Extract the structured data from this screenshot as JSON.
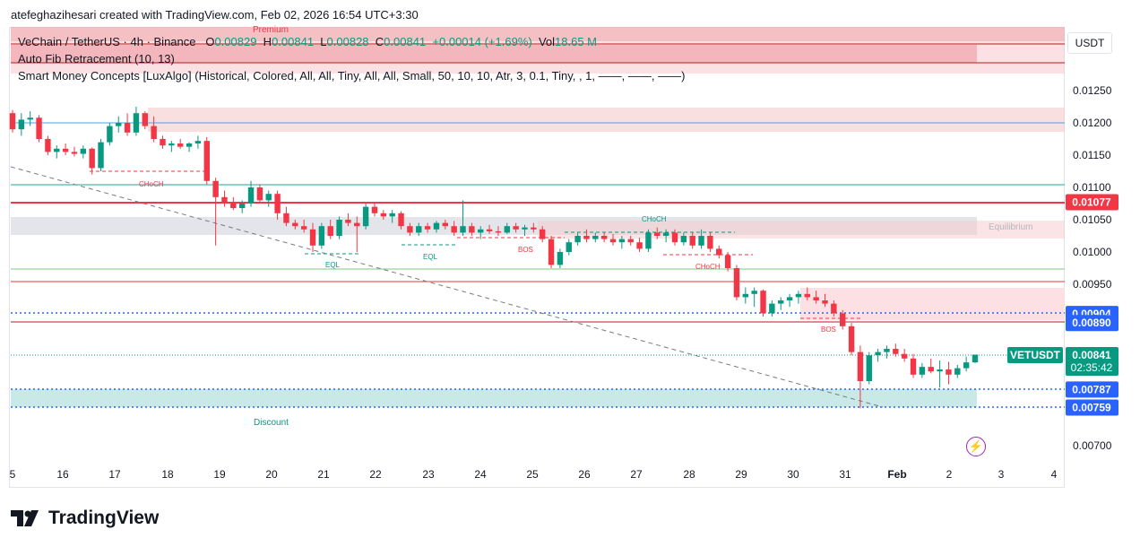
{
  "header": {
    "credit": "atefeghazihesari created with TradingView.com, Feb 02, 2026 16:54 UTC+3:30"
  },
  "legend": {
    "symbol": "VeChain / TetherUS · 4h · Binance",
    "ohlc": {
      "O": "0.00829",
      "H": "0.00841",
      "L": "0.00828",
      "C": "0.00841",
      "change": "+0.00014 (+1.69%)",
      "vol": "18.65 M"
    },
    "fib": "Auto Fib Retracement (10, 13)",
    "smc": "Smart Money Concepts [LuxAlgo] (Historical, Colored, All, All, Tiny, All, All, Small, 50, 10, 10, Atr, 3, 0.1, Tiny, , 1, ——, ——, ——)"
  },
  "toolbar": {
    "currency": "USDT"
  },
  "colors": {
    "up": "#089981",
    "down": "#f23645",
    "premium_zone": "#f7c9cc",
    "discount_zone": "#b2dfdb",
    "equilibrium_zone": "#d1d4dc"
  },
  "chart_data": {
    "type": "candlestick",
    "symbol": "VETUSDT",
    "interval": "4h",
    "x_ticks": [
      "5",
      "16",
      "17",
      "18",
      "19",
      "20",
      "21",
      "22",
      "23",
      "24",
      "25",
      "26",
      "27",
      "28",
      "29",
      "30",
      "31",
      "Feb",
      "2",
      "3",
      "4"
    ],
    "y_ticks": [
      "0.01250",
      "0.01200",
      "0.01150",
      "0.01100",
      "0.01050",
      "0.01000",
      "0.00950",
      "0.00700"
    ],
    "ylim": [
      0.0066,
      0.0131
    ],
    "price_tags": [
      {
        "label": "0.01077",
        "value": 0.01077,
        "color": "#f23645"
      },
      {
        "label": "0.00904",
        "value": 0.00904,
        "color": "#2962ff"
      },
      {
        "label": "0.00890",
        "value": 0.0089,
        "color": "#2962ff"
      },
      {
        "label": "0.00841",
        "value": 0.00841,
        "color": "#089981"
      },
      {
        "label": "0.00787",
        "value": 0.00787,
        "color": "#2962ff"
      },
      {
        "label": "0.00759",
        "value": 0.00759,
        "color": "#2962ff"
      }
    ],
    "last_price": {
      "symbol": "VETUSDT",
      "price": "0.00841",
      "countdown": "02:35:42"
    },
    "annotations": [
      "Premium",
      "Discount",
      "Equilibrium",
      "CHoCH",
      "CHoCH",
      "CHoCH",
      "EQL",
      "EQL",
      "BOS",
      "BOS"
    ],
    "candles": [
      [
        0.01215,
        0.0122,
        0.01185,
        0.0119
      ],
      [
        0.0119,
        0.01215,
        0.0118,
        0.01205
      ],
      [
        0.01205,
        0.01218,
        0.01195,
        0.01208
      ],
      [
        0.01208,
        0.01212,
        0.0117,
        0.01175
      ],
      [
        0.01175,
        0.0118,
        0.0115,
        0.01155
      ],
      [
        0.01155,
        0.01165,
        0.01145,
        0.0116
      ],
      [
        0.0116,
        0.01168,
        0.0115,
        0.01155
      ],
      [
        0.01155,
        0.01163,
        0.01148,
        0.01152
      ],
      [
        0.01152,
        0.01165,
        0.01145,
        0.0116
      ],
      [
        0.0116,
        0.01162,
        0.0112,
        0.0113
      ],
      [
        0.0113,
        0.01175,
        0.01125,
        0.0117
      ],
      [
        0.0117,
        0.012,
        0.01165,
        0.01195
      ],
      [
        0.01195,
        0.0121,
        0.01185,
        0.012
      ],
      [
        0.012,
        0.01215,
        0.0118,
        0.01185
      ],
      [
        0.01185,
        0.01225,
        0.0118,
        0.01215
      ],
      [
        0.01215,
        0.01218,
        0.0119,
        0.01195
      ],
      [
        0.01195,
        0.0121,
        0.0117,
        0.01175
      ],
      [
        0.01175,
        0.0118,
        0.0116,
        0.01165
      ],
      [
        0.01165,
        0.01172,
        0.01155,
        0.01168
      ],
      [
        0.01168,
        0.01175,
        0.0116,
        0.01163
      ],
      [
        0.01163,
        0.0117,
        0.01155,
        0.01168
      ],
      [
        0.01168,
        0.0118,
        0.0116,
        0.01172
      ],
      [
        0.01172,
        0.01178,
        0.01105,
        0.0111
      ],
      [
        0.0111,
        0.01115,
        0.0101,
        0.01085
      ],
      [
        0.01085,
        0.01095,
        0.0107,
        0.01075
      ],
      [
        0.01075,
        0.01085,
        0.01065,
        0.01068
      ],
      [
        0.01068,
        0.0108,
        0.0106,
        0.01075
      ],
      [
        0.01075,
        0.0111,
        0.0107,
        0.011
      ],
      [
        0.011,
        0.01105,
        0.01075,
        0.0108
      ],
      [
        0.0108,
        0.01095,
        0.0107,
        0.0109
      ],
      [
        0.0109,
        0.01095,
        0.0105,
        0.0106
      ],
      [
        0.0106,
        0.0107,
        0.0104,
        0.01045
      ],
      [
        0.01045,
        0.0105,
        0.01035,
        0.0104
      ],
      [
        0.0104,
        0.0105,
        0.0103,
        0.01035
      ],
      [
        0.01035,
        0.01045,
        0.01,
        0.0101
      ],
      [
        0.0101,
        0.01045,
        0.01005,
        0.0104
      ],
      [
        0.0104,
        0.0105,
        0.0102,
        0.01025
      ],
      [
        0.01025,
        0.01055,
        0.0102,
        0.0105
      ],
      [
        0.0105,
        0.0106,
        0.0104,
        0.01045
      ],
      [
        0.01045,
        0.01055,
        0.01,
        0.0104
      ],
      [
        0.0104,
        0.01075,
        0.01035,
        0.0107
      ],
      [
        0.0107,
        0.01075,
        0.01055,
        0.0106
      ],
      [
        0.0106,
        0.01065,
        0.0105,
        0.01055
      ],
      [
        0.01055,
        0.01065,
        0.01045,
        0.0106
      ],
      [
        0.0106,
        0.01063,
        0.01035,
        0.0104
      ],
      [
        0.0104,
        0.01045,
        0.01025,
        0.0103
      ],
      [
        0.0103,
        0.01045,
        0.01025,
        0.0104
      ],
      [
        0.0104,
        0.01045,
        0.0103,
        0.01035
      ],
      [
        0.01035,
        0.01048,
        0.0103,
        0.01045
      ],
      [
        0.01045,
        0.0105,
        0.01035,
        0.0104
      ],
      [
        0.0104,
        0.01048,
        0.01025,
        0.0103
      ],
      [
        0.0103,
        0.0108,
        0.01025,
        0.0104
      ],
      [
        0.0104,
        0.01045,
        0.01025,
        0.0103
      ],
      [
        0.0103,
        0.0104,
        0.0102,
        0.01035
      ],
      [
        0.01035,
        0.01042,
        0.01028,
        0.01032
      ],
      [
        0.01032,
        0.0104,
        0.01025,
        0.0103
      ],
      [
        0.0103,
        0.01045,
        0.01028,
        0.0104
      ],
      [
        0.0104,
        0.01045,
        0.0103,
        0.01035
      ],
      [
        0.01035,
        0.01042,
        0.01025,
        0.01038
      ],
      [
        0.01038,
        0.01045,
        0.0103,
        0.01035
      ],
      [
        0.01035,
        0.0104,
        0.01015,
        0.0102
      ],
      [
        0.0102,
        0.01025,
        0.00975,
        0.0098
      ],
      [
        0.0098,
        0.01005,
        0.00975,
        0.01
      ],
      [
        0.01,
        0.0102,
        0.00995,
        0.01015
      ],
      [
        0.01015,
        0.0103,
        0.0101,
        0.01025
      ],
      [
        0.01025,
        0.01035,
        0.01015,
        0.0102
      ],
      [
        0.0102,
        0.0103,
        0.01015,
        0.01025
      ],
      [
        0.01025,
        0.0103,
        0.01015,
        0.0102
      ],
      [
        0.0102,
        0.01028,
        0.0101,
        0.01015
      ],
      [
        0.01015,
        0.01025,
        0.01005,
        0.0102
      ],
      [
        0.0102,
        0.01025,
        0.0101,
        0.01015
      ],
      [
        0.01015,
        0.01022,
        0.01,
        0.01005
      ],
      [
        0.01005,
        0.01035,
        0.01,
        0.0103
      ],
      [
        0.0103,
        0.01038,
        0.0102,
        0.01025
      ],
      [
        0.01025,
        0.01035,
        0.01015,
        0.0103
      ],
      [
        0.0103,
        0.01035,
        0.0101,
        0.01015
      ],
      [
        0.01015,
        0.0103,
        0.0101,
        0.01025
      ],
      [
        0.01025,
        0.0103,
        0.01005,
        0.0101
      ],
      [
        0.0101,
        0.01035,
        0.01005,
        0.01025
      ],
      [
        0.01025,
        0.0103,
        0.01,
        0.01005
      ],
      [
        0.01005,
        0.0101,
        0.0099,
        0.00995
      ],
      [
        0.00995,
        0.01,
        0.0097,
        0.00975
      ],
      [
        0.00975,
        0.0098,
        0.00925,
        0.0093
      ],
      [
        0.0093,
        0.00945,
        0.0092,
        0.00935
      ],
      [
        0.00935,
        0.00945,
        0.00915,
        0.0094
      ],
      [
        0.0094,
        0.00942,
        0.009,
        0.00905
      ],
      [
        0.00905,
        0.00925,
        0.009,
        0.0092
      ],
      [
        0.0092,
        0.0093,
        0.0091,
        0.00925
      ],
      [
        0.00925,
        0.00935,
        0.00915,
        0.0093
      ],
      [
        0.0093,
        0.0094,
        0.0092,
        0.00935
      ],
      [
        0.00935,
        0.00945,
        0.00925,
        0.0093
      ],
      [
        0.0093,
        0.0094,
        0.0092,
        0.00925
      ],
      [
        0.00925,
        0.00935,
        0.00915,
        0.0092
      ],
      [
        0.0092,
        0.00925,
        0.009,
        0.00905
      ],
      [
        0.00905,
        0.0091,
        0.0088,
        0.00885
      ],
      [
        0.00885,
        0.0089,
        0.0084,
        0.00845
      ],
      [
        0.00845,
        0.00855,
        0.00758,
        0.008
      ],
      [
        0.008,
        0.00845,
        0.00795,
        0.0084
      ],
      [
        0.0084,
        0.0085,
        0.0083,
        0.00845
      ],
      [
        0.00845,
        0.00855,
        0.00835,
        0.0085
      ],
      [
        0.0085,
        0.00858,
        0.00838,
        0.00842
      ],
      [
        0.00842,
        0.0085,
        0.0083,
        0.00835
      ],
      [
        0.00835,
        0.00842,
        0.00805,
        0.0081
      ],
      [
        0.0081,
        0.00828,
        0.00805,
        0.00822
      ],
      [
        0.00822,
        0.00835,
        0.00812,
        0.00815
      ],
      [
        0.00815,
        0.00832,
        0.0079,
        0.00818
      ],
      [
        0.00818,
        0.0083,
        0.00795,
        0.0081
      ],
      [
        0.0081,
        0.00825,
        0.00805,
        0.0082
      ],
      [
        0.0082,
        0.00838,
        0.00815,
        0.00829
      ],
      [
        0.00829,
        0.00841,
        0.00828,
        0.00841
      ]
    ]
  }
}
